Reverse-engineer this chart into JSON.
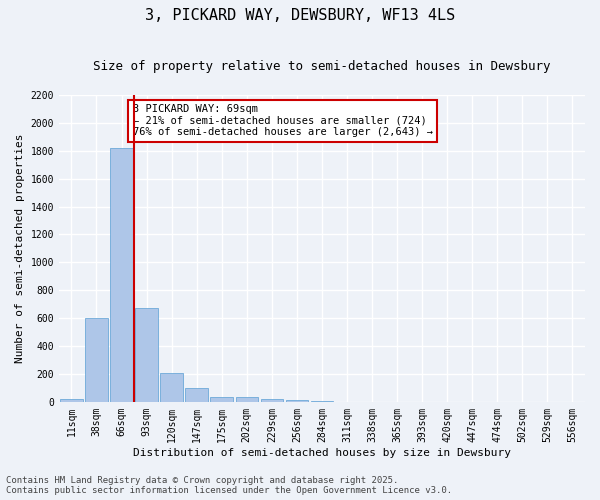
{
  "title1": "3, PICKARD WAY, DEWSBURY, WF13 4LS",
  "title2": "Size of property relative to semi-detached houses in Dewsbury",
  "xlabel": "Distribution of semi-detached houses by size in Dewsbury",
  "ylabel": "Number of semi-detached properties",
  "categories": [
    "11sqm",
    "38sqm",
    "66sqm",
    "93sqm",
    "120sqm",
    "147sqm",
    "175sqm",
    "202sqm",
    "229sqm",
    "256sqm",
    "284sqm",
    "311sqm",
    "338sqm",
    "365sqm",
    "393sqm",
    "420sqm",
    "447sqm",
    "474sqm",
    "502sqm",
    "529sqm",
    "556sqm"
  ],
  "values": [
    20,
    600,
    1820,
    670,
    210,
    100,
    38,
    35,
    20,
    10,
    5,
    2,
    1,
    0,
    0,
    0,
    0,
    0,
    0,
    0,
    0
  ],
  "bar_color": "#aec6e8",
  "bar_edge_color": "#5a9fd4",
  "annotation_text": "3 PICKARD WAY: 69sqm\n← 21% of semi-detached houses are smaller (724)\n76% of semi-detached houses are larger (2,643) →",
  "annotation_box_color": "#ffffff",
  "annotation_box_edge": "#cc0000",
  "vline_color": "#cc0000",
  "vline_x": 2.5,
  "ylim": [
    0,
    2200
  ],
  "yticks": [
    0,
    200,
    400,
    600,
    800,
    1000,
    1200,
    1400,
    1600,
    1800,
    2000,
    2200
  ],
  "footer1": "Contains HM Land Registry data © Crown copyright and database right 2025.",
  "footer2": "Contains public sector information licensed under the Open Government Licence v3.0.",
  "bg_color": "#eef2f8",
  "grid_color": "#ffffff",
  "title1_fontsize": 11,
  "title2_fontsize": 9,
  "tick_fontsize": 7,
  "label_fontsize": 8,
  "footer_fontsize": 6.5
}
